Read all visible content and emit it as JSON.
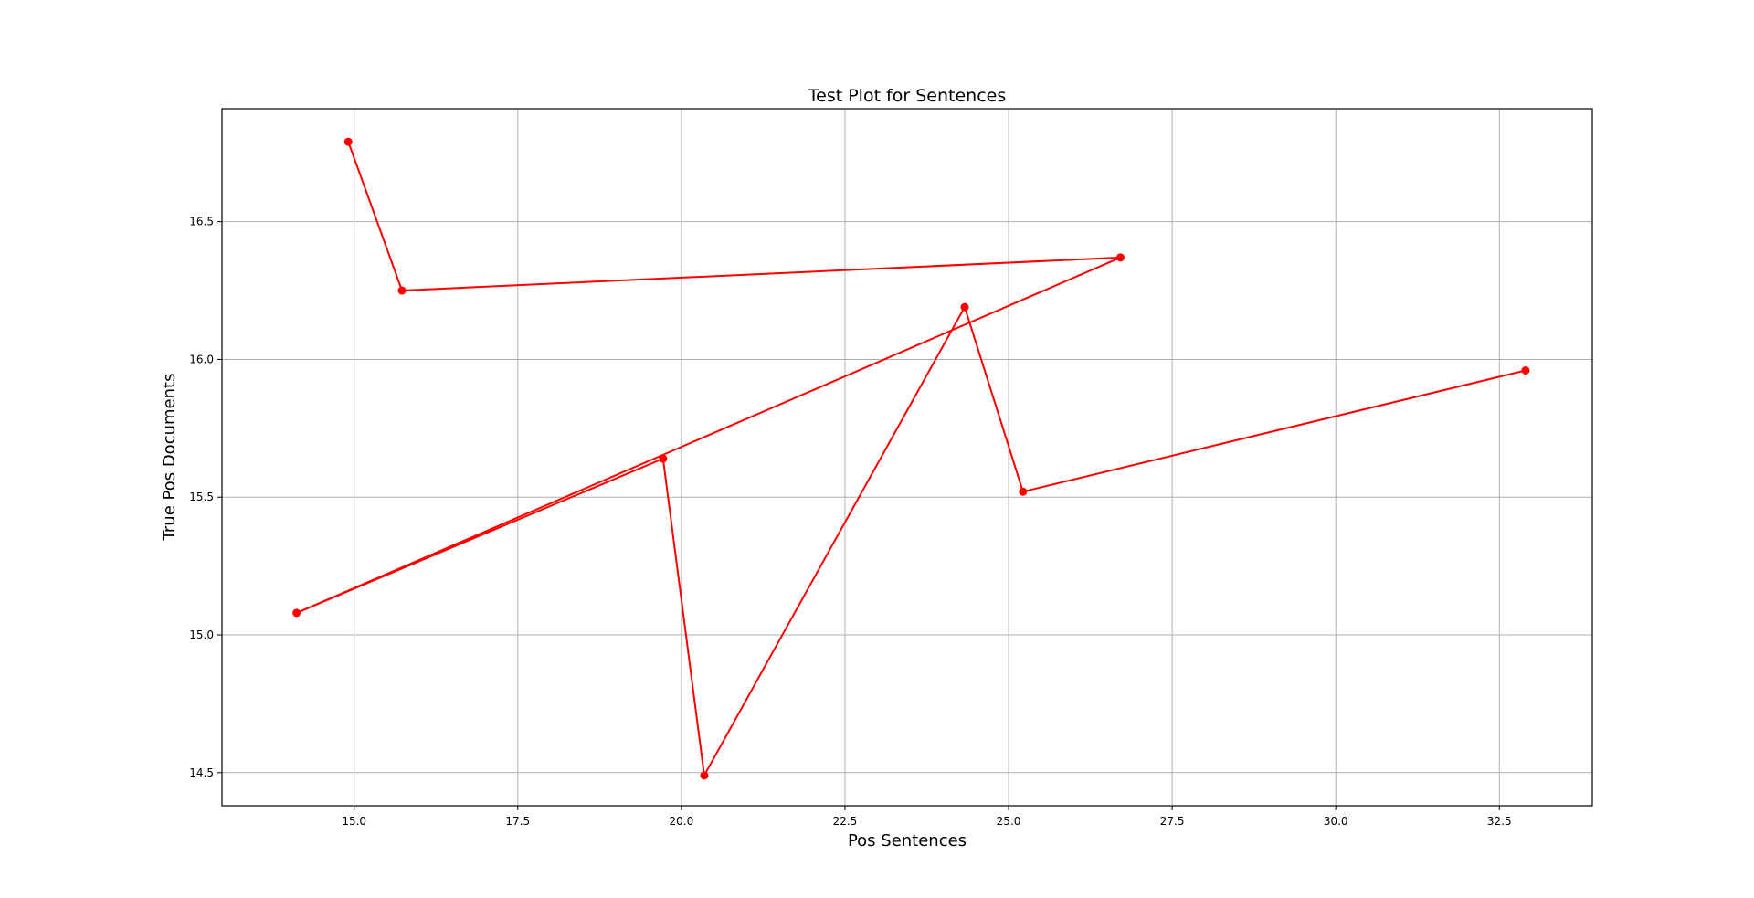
{
  "chart_data": {
    "type": "line",
    "title": "Test Plot for Sentences",
    "xlabel": "Pos Sentences",
    "ylabel": "True Pos Documents",
    "xlim": [
      12.98,
      33.92
    ],
    "ylim": [
      14.38,
      16.91
    ],
    "x_ticks": [
      15.0,
      17.5,
      20.0,
      22.5,
      25.0,
      27.5,
      30.0,
      32.5
    ],
    "x_tick_labels": [
      "15.0",
      "17.5",
      "20.0",
      "22.5",
      "25.0",
      "27.5",
      "30.0",
      "32.5"
    ],
    "y_ticks": [
      14.5,
      15.0,
      15.5,
      16.0,
      16.5
    ],
    "y_tick_labels": [
      "14.5",
      "15.0",
      "15.5",
      "16.0",
      "16.5"
    ],
    "grid": true,
    "series": [
      {
        "color": "#ff0000",
        "marker": "circle",
        "x": [
          14.91,
          15.73,
          26.71,
          14.12,
          19.72,
          20.35,
          24.33,
          25.22,
          32.9
        ],
        "y": [
          16.79,
          16.25,
          16.37,
          15.08,
          15.64,
          14.49,
          16.19,
          15.52,
          15.96
        ]
      }
    ]
  }
}
